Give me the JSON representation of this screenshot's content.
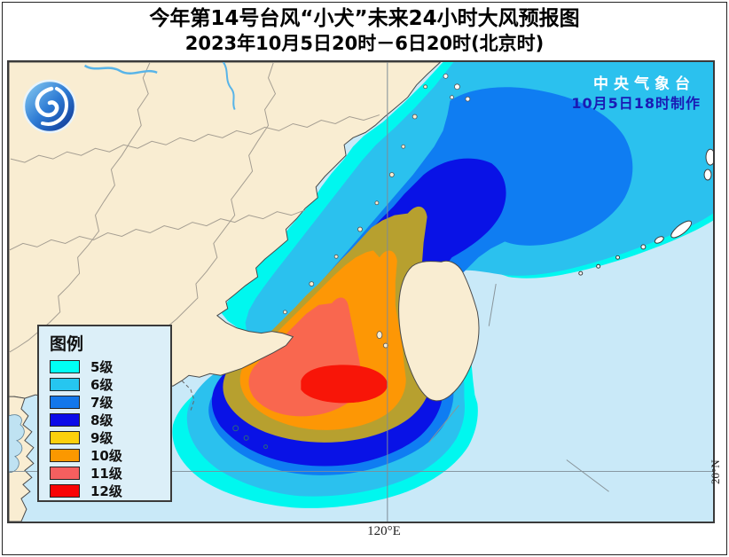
{
  "title": {
    "line1": "今年第14号台风“小犬”未来24小时大风预报图",
    "line2": "2023年10月5日20时－6日20时(北京时)"
  },
  "agency": {
    "name": "中央气象台",
    "issued": "10月5日18时制作"
  },
  "legend": {
    "title": "图例",
    "items": [
      {
        "label": "5级",
        "color": "#00FFF4"
      },
      {
        "label": "6级",
        "color": "#26C6F0"
      },
      {
        "label": "7级",
        "color": "#1377EA"
      },
      {
        "label": "8级",
        "color": "#0B0BE8"
      },
      {
        "label": "9级",
        "color": "#FCD00C"
      },
      {
        "label": "10级",
        "color": "#FB9800"
      },
      {
        "label": "11级",
        "color": "#F55F5F"
      },
      {
        "label": "12级",
        "color": "#F80505"
      }
    ]
  },
  "map_labels": {
    "longitude": "120°E",
    "latitude": "20°N"
  },
  "map_colors": {
    "sea": "#C9E9F8",
    "land": "#F9EDD2",
    "inlet": "#BFE2F2",
    "band5": "#00F7EF",
    "band6": "#2BC1EE",
    "band7": "#0F7DF2",
    "band8": "#0912E6",
    "band9": "#B7A02F",
    "band10": "#FD9705",
    "band11": "#F9674F",
    "band12": "#F81508"
  }
}
